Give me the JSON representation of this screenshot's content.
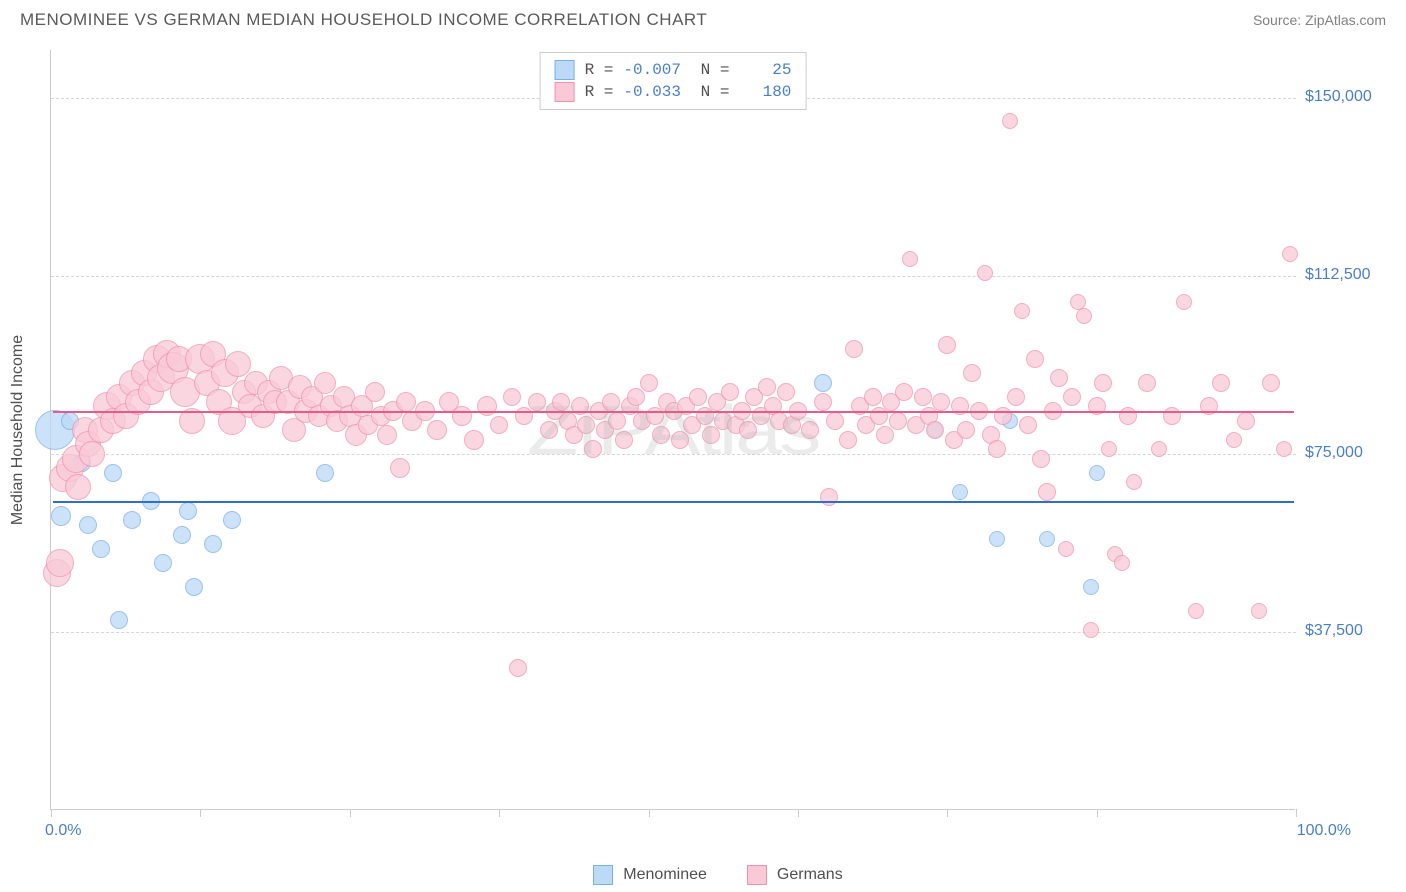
{
  "header": {
    "title": "MENOMINEE VS GERMAN MEDIAN HOUSEHOLD INCOME CORRELATION CHART",
    "source": "Source: ZipAtlas.com"
  },
  "chart": {
    "type": "scatter",
    "watermark": "ZIPAtlas",
    "y_axis_label": "Median Household Income",
    "background_color": "#ffffff",
    "grid_color": "#d5d5d5",
    "axis_color": "#cccccc",
    "label_color": "#4a7ec9",
    "ylim": [
      0,
      160000
    ],
    "xlim": [
      0,
      100
    ],
    "y_ticks": [
      {
        "value": 37500,
        "label": "$37,500"
      },
      {
        "value": 75000,
        "label": "$75,000"
      },
      {
        "value": 112500,
        "label": "$112,500"
      },
      {
        "value": 150000,
        "label": "$150,000"
      }
    ],
    "x_ticks": [
      0,
      12,
      24,
      36,
      48,
      60,
      72,
      84,
      100
    ],
    "x_tick_labels": {
      "start": "0.0%",
      "end": "100.0%"
    },
    "series": [
      {
        "name": "Menominee",
        "color_fill": "#bcd9f6",
        "color_stroke": "#7ab0e8",
        "r_value": "-0.007",
        "n_value": "25",
        "trendline_y": 65000,
        "trendline_color": "#2d6fc9",
        "points": [
          {
            "x": 0.3,
            "y": 80000,
            "r": 20
          },
          {
            "x": 0.8,
            "y": 62000,
            "r": 10
          },
          {
            "x": 1.5,
            "y": 82000,
            "r": 9
          },
          {
            "x": 2.5,
            "y": 73000,
            "r": 9
          },
          {
            "x": 3,
            "y": 60000,
            "r": 9
          },
          {
            "x": 4,
            "y": 55000,
            "r": 9
          },
          {
            "x": 5,
            "y": 71000,
            "r": 9
          },
          {
            "x": 5.5,
            "y": 40000,
            "r": 9
          },
          {
            "x": 6.5,
            "y": 61000,
            "r": 9
          },
          {
            "x": 8,
            "y": 65000,
            "r": 9
          },
          {
            "x": 9,
            "y": 52000,
            "r": 9
          },
          {
            "x": 10.5,
            "y": 58000,
            "r": 9
          },
          {
            "x": 11,
            "y": 63000,
            "r": 9
          },
          {
            "x": 11.5,
            "y": 47000,
            "r": 9
          },
          {
            "x": 13,
            "y": 56000,
            "r": 9
          },
          {
            "x": 14.5,
            "y": 61000,
            "r": 9
          },
          {
            "x": 22,
            "y": 71000,
            "r": 9
          },
          {
            "x": 62,
            "y": 90000,
            "r": 9
          },
          {
            "x": 71,
            "y": 80000,
            "r": 8
          },
          {
            "x": 73,
            "y": 67000,
            "r": 8
          },
          {
            "x": 76,
            "y": 57000,
            "r": 8
          },
          {
            "x": 77,
            "y": 82000,
            "r": 8
          },
          {
            "x": 80,
            "y": 57000,
            "r": 8
          },
          {
            "x": 83.5,
            "y": 47000,
            "r": 8
          },
          {
            "x": 84,
            "y": 71000,
            "r": 8
          }
        ]
      },
      {
        "name": "Germans",
        "color_fill": "#f9c9d7",
        "color_stroke": "#f092ae",
        "r_value": "-0.033",
        "n_value": "180",
        "trendline_y": 84000,
        "trendline_color": "#e85a8a",
        "points": [
          {
            "x": 0.5,
            "y": 50000,
            "r": 14
          },
          {
            "x": 0.7,
            "y": 52000,
            "r": 14
          },
          {
            "x": 1,
            "y": 70000,
            "r": 14
          },
          {
            "x": 1.5,
            "y": 72000,
            "r": 14
          },
          {
            "x": 2,
            "y": 74000,
            "r": 14
          },
          {
            "x": 2.2,
            "y": 68000,
            "r": 13
          },
          {
            "x": 2.7,
            "y": 80000,
            "r": 13
          },
          {
            "x": 3,
            "y": 77000,
            "r": 13
          },
          {
            "x": 3.3,
            "y": 75000,
            "r": 13
          },
          {
            "x": 4,
            "y": 80000,
            "r": 13
          },
          {
            "x": 4.5,
            "y": 85000,
            "r": 14
          },
          {
            "x": 5,
            "y": 82000,
            "r": 13
          },
          {
            "x": 5.5,
            "y": 87000,
            "r": 13
          },
          {
            "x": 6,
            "y": 83000,
            "r": 13
          },
          {
            "x": 6.5,
            "y": 90000,
            "r": 13
          },
          {
            "x": 7,
            "y": 86000,
            "r": 13
          },
          {
            "x": 7.5,
            "y": 92000,
            "r": 13
          },
          {
            "x": 8,
            "y": 88000,
            "r": 13
          },
          {
            "x": 8.5,
            "y": 95000,
            "r": 14
          },
          {
            "x": 8.8,
            "y": 91000,
            "r": 14
          },
          {
            "x": 9.3,
            "y": 96000,
            "r": 14
          },
          {
            "x": 9.8,
            "y": 93000,
            "r": 16
          },
          {
            "x": 10.3,
            "y": 95000,
            "r": 13
          },
          {
            "x": 10.8,
            "y": 88000,
            "r": 15
          },
          {
            "x": 11.3,
            "y": 82000,
            "r": 13
          },
          {
            "x": 12,
            "y": 95000,
            "r": 15
          },
          {
            "x": 12.5,
            "y": 90000,
            "r": 13
          },
          {
            "x": 13,
            "y": 96000,
            "r": 13
          },
          {
            "x": 13.5,
            "y": 86000,
            "r": 13
          },
          {
            "x": 14,
            "y": 92000,
            "r": 14
          },
          {
            "x": 14.5,
            "y": 82000,
            "r": 14
          },
          {
            "x": 15,
            "y": 94000,
            "r": 13
          },
          {
            "x": 15.5,
            "y": 88000,
            "r": 12
          },
          {
            "x": 16,
            "y": 85000,
            "r": 12
          },
          {
            "x": 16.5,
            "y": 90000,
            "r": 12
          },
          {
            "x": 17,
            "y": 83000,
            "r": 12
          },
          {
            "x": 17.5,
            "y": 88000,
            "r": 12
          },
          {
            "x": 18,
            "y": 86000,
            "r": 12
          },
          {
            "x": 18.5,
            "y": 91000,
            "r": 12
          },
          {
            "x": 19,
            "y": 86000,
            "r": 12
          },
          {
            "x": 19.5,
            "y": 80000,
            "r": 12
          },
          {
            "x": 20,
            "y": 89000,
            "r": 12
          },
          {
            "x": 20.5,
            "y": 84000,
            "r": 12
          },
          {
            "x": 21,
            "y": 87000,
            "r": 11
          },
          {
            "x": 21.5,
            "y": 83000,
            "r": 11
          },
          {
            "x": 22,
            "y": 90000,
            "r": 11
          },
          {
            "x": 22.5,
            "y": 85000,
            "r": 11
          },
          {
            "x": 23,
            "y": 82000,
            "r": 11
          },
          {
            "x": 23.5,
            "y": 87000,
            "r": 11
          },
          {
            "x": 24,
            "y": 83000,
            "r": 11
          },
          {
            "x": 24.5,
            "y": 79000,
            "r": 11
          },
          {
            "x": 25,
            "y": 85000,
            "r": 11
          },
          {
            "x": 25.5,
            "y": 81000,
            "r": 10
          },
          {
            "x": 26,
            "y": 88000,
            "r": 10
          },
          {
            "x": 26.5,
            "y": 83000,
            "r": 10
          },
          {
            "x": 27,
            "y": 79000,
            "r": 10
          },
          {
            "x": 27.5,
            "y": 84000,
            "r": 10
          },
          {
            "x": 28,
            "y": 72000,
            "r": 10
          },
          {
            "x": 28.5,
            "y": 86000,
            "r": 10
          },
          {
            "x": 29,
            "y": 82000,
            "r": 10
          },
          {
            "x": 30,
            "y": 84000,
            "r": 10
          },
          {
            "x": 31,
            "y": 80000,
            "r": 10
          },
          {
            "x": 32,
            "y": 86000,
            "r": 10
          },
          {
            "x": 33,
            "y": 83000,
            "r": 10
          },
          {
            "x": 34,
            "y": 78000,
            "r": 10
          },
          {
            "x": 35,
            "y": 85000,
            "r": 10
          },
          {
            "x": 36,
            "y": 81000,
            "r": 9
          },
          {
            "x": 37,
            "y": 87000,
            "r": 9
          },
          {
            "x": 37.5,
            "y": 30000,
            "r": 9
          },
          {
            "x": 38,
            "y": 83000,
            "r": 9
          },
          {
            "x": 39,
            "y": 86000,
            "r": 9
          },
          {
            "x": 40,
            "y": 80000,
            "r": 9
          },
          {
            "x": 40.5,
            "y": 84000,
            "r": 9
          },
          {
            "x": 41,
            "y": 86000,
            "r": 9
          },
          {
            "x": 41.5,
            "y": 82000,
            "r": 9
          },
          {
            "x": 42,
            "y": 79000,
            "r": 9
          },
          {
            "x": 42.5,
            "y": 85000,
            "r": 9
          },
          {
            "x": 43,
            "y": 81000,
            "r": 9
          },
          {
            "x": 43.5,
            "y": 76000,
            "r": 9
          },
          {
            "x": 44,
            "y": 84000,
            "r": 9
          },
          {
            "x": 44.5,
            "y": 80000,
            "r": 9
          },
          {
            "x": 45,
            "y": 86000,
            "r": 9
          },
          {
            "x": 45.5,
            "y": 82000,
            "r": 9
          },
          {
            "x": 46,
            "y": 78000,
            "r": 9
          },
          {
            "x": 46.5,
            "y": 85000,
            "r": 9
          },
          {
            "x": 47,
            "y": 87000,
            "r": 9
          },
          {
            "x": 47.5,
            "y": 82000,
            "r": 9
          },
          {
            "x": 48,
            "y": 90000,
            "r": 9
          },
          {
            "x": 48.5,
            "y": 83000,
            "r": 9
          },
          {
            "x": 49,
            "y": 79000,
            "r": 9
          },
          {
            "x": 49.5,
            "y": 86000,
            "r": 9
          },
          {
            "x": 50,
            "y": 84000,
            "r": 9
          },
          {
            "x": 50.5,
            "y": 78000,
            "r": 9
          },
          {
            "x": 51,
            "y": 85000,
            "r": 9
          },
          {
            "x": 51.5,
            "y": 81000,
            "r": 9
          },
          {
            "x": 52,
            "y": 87000,
            "r": 9
          },
          {
            "x": 52.5,
            "y": 83000,
            "r": 9
          },
          {
            "x": 53,
            "y": 79000,
            "r": 9
          },
          {
            "x": 53.5,
            "y": 86000,
            "r": 9
          },
          {
            "x": 54,
            "y": 82000,
            "r": 9
          },
          {
            "x": 54.5,
            "y": 88000,
            "r": 9
          },
          {
            "x": 55,
            "y": 81000,
            "r": 9
          },
          {
            "x": 55.5,
            "y": 84000,
            "r": 9
          },
          {
            "x": 56,
            "y": 80000,
            "r": 9
          },
          {
            "x": 56.5,
            "y": 87000,
            "r": 9
          },
          {
            "x": 57,
            "y": 83000,
            "r": 9
          },
          {
            "x": 57.5,
            "y": 89000,
            "r": 9
          },
          {
            "x": 58,
            "y": 85000,
            "r": 9
          },
          {
            "x": 58.5,
            "y": 82000,
            "r": 9
          },
          {
            "x": 59,
            "y": 88000,
            "r": 9
          },
          {
            "x": 59.5,
            "y": 81000,
            "r": 9
          },
          {
            "x": 60,
            "y": 84000,
            "r": 9
          },
          {
            "x": 61,
            "y": 80000,
            "r": 9
          },
          {
            "x": 62,
            "y": 86000,
            "r": 9
          },
          {
            "x": 62.5,
            "y": 66000,
            "r": 9
          },
          {
            "x": 63,
            "y": 82000,
            "r": 9
          },
          {
            "x": 64,
            "y": 78000,
            "r": 9
          },
          {
            "x": 64.5,
            "y": 97000,
            "r": 9
          },
          {
            "x": 65,
            "y": 85000,
            "r": 9
          },
          {
            "x": 65.5,
            "y": 81000,
            "r": 9
          },
          {
            "x": 66,
            "y": 87000,
            "r": 9
          },
          {
            "x": 66.5,
            "y": 83000,
            "r": 9
          },
          {
            "x": 67,
            "y": 79000,
            "r": 9
          },
          {
            "x": 67.5,
            "y": 86000,
            "r": 9
          },
          {
            "x": 68,
            "y": 82000,
            "r": 9
          },
          {
            "x": 68.5,
            "y": 88000,
            "r": 9
          },
          {
            "x": 69,
            "y": 116000,
            "r": 8
          },
          {
            "x": 69.5,
            "y": 81000,
            "r": 9
          },
          {
            "x": 70,
            "y": 87000,
            "r": 9
          },
          {
            "x": 70.5,
            "y": 83000,
            "r": 9
          },
          {
            "x": 71,
            "y": 80000,
            "r": 9
          },
          {
            "x": 71.5,
            "y": 86000,
            "r": 9
          },
          {
            "x": 72,
            "y": 98000,
            "r": 9
          },
          {
            "x": 72.5,
            "y": 78000,
            "r": 9
          },
          {
            "x": 73,
            "y": 85000,
            "r": 9
          },
          {
            "x": 73.5,
            "y": 80000,
            "r": 9
          },
          {
            "x": 74,
            "y": 92000,
            "r": 9
          },
          {
            "x": 74.5,
            "y": 84000,
            "r": 9
          },
          {
            "x": 75,
            "y": 113000,
            "r": 8
          },
          {
            "x": 75.5,
            "y": 79000,
            "r": 9
          },
          {
            "x": 76,
            "y": 76000,
            "r": 9
          },
          {
            "x": 76.5,
            "y": 83000,
            "r": 9
          },
          {
            "x": 77,
            "y": 145000,
            "r": 8
          },
          {
            "x": 77.5,
            "y": 87000,
            "r": 9
          },
          {
            "x": 78,
            "y": 105000,
            "r": 8
          },
          {
            "x": 78.5,
            "y": 81000,
            "r": 9
          },
          {
            "x": 79,
            "y": 95000,
            "r": 9
          },
          {
            "x": 79.5,
            "y": 74000,
            "r": 9
          },
          {
            "x": 80,
            "y": 67000,
            "r": 9
          },
          {
            "x": 80.5,
            "y": 84000,
            "r": 9
          },
          {
            "x": 81,
            "y": 91000,
            "r": 9
          },
          {
            "x": 81.5,
            "y": 55000,
            "r": 8
          },
          {
            "x": 82,
            "y": 87000,
            "r": 9
          },
          {
            "x": 82.5,
            "y": 107000,
            "r": 8
          },
          {
            "x": 83,
            "y": 104000,
            "r": 8
          },
          {
            "x": 83.5,
            "y": 38000,
            "r": 8
          },
          {
            "x": 84,
            "y": 85000,
            "r": 9
          },
          {
            "x": 84.5,
            "y": 90000,
            "r": 9
          },
          {
            "x": 85,
            "y": 76000,
            "r": 8
          },
          {
            "x": 85.5,
            "y": 54000,
            "r": 8
          },
          {
            "x": 86,
            "y": 52000,
            "r": 8
          },
          {
            "x": 86.5,
            "y": 83000,
            "r": 9
          },
          {
            "x": 87,
            "y": 69000,
            "r": 8
          },
          {
            "x": 88,
            "y": 90000,
            "r": 9
          },
          {
            "x": 89,
            "y": 76000,
            "r": 8
          },
          {
            "x": 90,
            "y": 83000,
            "r": 9
          },
          {
            "x": 91,
            "y": 107000,
            "r": 8
          },
          {
            "x": 92,
            "y": 42000,
            "r": 8
          },
          {
            "x": 93,
            "y": 85000,
            "r": 9
          },
          {
            "x": 94,
            "y": 90000,
            "r": 9
          },
          {
            "x": 95,
            "y": 78000,
            "r": 8
          },
          {
            "x": 96,
            "y": 82000,
            "r": 9
          },
          {
            "x": 97,
            "y": 42000,
            "r": 8
          },
          {
            "x": 98,
            "y": 90000,
            "r": 9
          },
          {
            "x": 99,
            "y": 76000,
            "r": 8
          },
          {
            "x": 99.5,
            "y": 117000,
            "r": 8
          }
        ]
      }
    ]
  },
  "legend_bottom": [
    {
      "label": "Menominee",
      "fill": "#bcd9f6",
      "stroke": "#7ab0e8"
    },
    {
      "label": "Germans",
      "fill": "#f9c9d7",
      "stroke": "#f092ae"
    }
  ]
}
